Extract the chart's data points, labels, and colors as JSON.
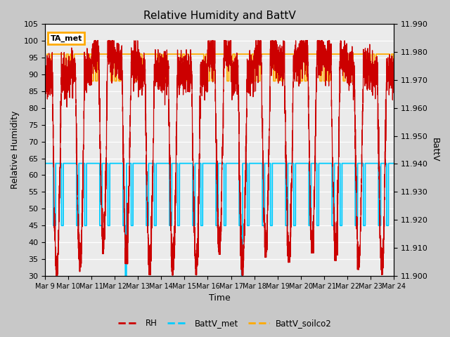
{
  "title": "Relative Humidity and BattV",
  "xlabel": "Time",
  "ylabel_left": "Relative Humidity",
  "ylabel_right": "BattV",
  "ylim_left": [
    30,
    105
  ],
  "ylim_right": [
    11.9,
    11.99
  ],
  "yticks_left": [
    30,
    35,
    40,
    45,
    50,
    55,
    60,
    65,
    70,
    75,
    80,
    85,
    90,
    95,
    100,
    105
  ],
  "yticks_right": [
    11.9,
    11.91,
    11.92,
    11.93,
    11.94,
    11.95,
    11.96,
    11.97,
    11.98,
    11.99
  ],
  "xtick_labels": [
    "Mar 9",
    "Mar 10",
    "Mar 11",
    "Mar 12",
    "Mar 13",
    "Mar 14",
    "Mar 15",
    "Mar 16",
    "Mar 17",
    "Mar 18",
    "Mar 19",
    "Mar 20",
    "Mar 21",
    "Mar 22",
    "Mar 23",
    "Mar 24"
  ],
  "color_RH": "#cc0000",
  "color_BattV_met": "#00ccff",
  "color_BattV_soilco2": "#ffaa00",
  "plot_bg_color": "#ebebeb",
  "annotation_text": "TA_met",
  "legend_labels": [
    "RH",
    "BattV_met",
    "BattV_soilco2"
  ],
  "title_fontsize": 11
}
